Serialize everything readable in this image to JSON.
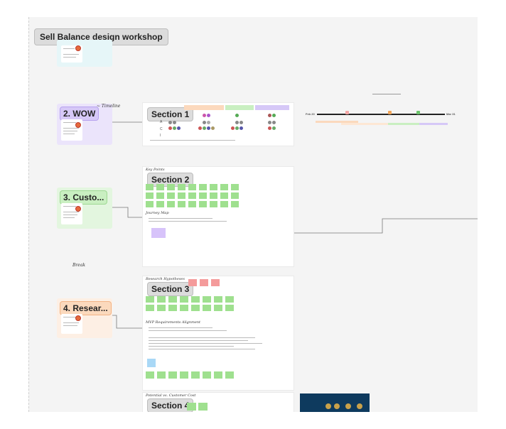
{
  "board": {
    "title": "Sell Balance design workshop"
  },
  "stages": [
    {
      "id": "wow",
      "label": "2. WOW",
      "color": "#ebe4fb",
      "label_bg": "#d6c8f7",
      "label_border": "#b7a2ee"
    },
    {
      "id": "customer",
      "label": "3. Custo...",
      "color": "#e3f6df",
      "label_bg": "#c9efc1",
      "label_border": "#9ed993"
    },
    {
      "id": "research",
      "label": "4. Resear...",
      "color": "#fdefe4",
      "label_bg": "#fbd9bd",
      "label_border": "#f2b486"
    }
  ],
  "sections": {
    "s1": {
      "label": "Section 1",
      "row_labels": [
        "A",
        "C",
        "I"
      ]
    },
    "s2": {
      "label": "Section 2"
    },
    "s3": {
      "label": "Section 3"
    },
    "s4": {
      "label": "Section 4"
    }
  },
  "timeline": {
    "start": "Feb 20",
    "end": "Mar 31"
  },
  "colors": {
    "sticky_green": "#9fe08f",
    "sticky_red": "#f49b9b",
    "sticky_purple": "#d7c3fa",
    "sticky_blue": "#a9d8f6",
    "canvas_bg": "#f4f4f4",
    "connector": "#777777"
  }
}
